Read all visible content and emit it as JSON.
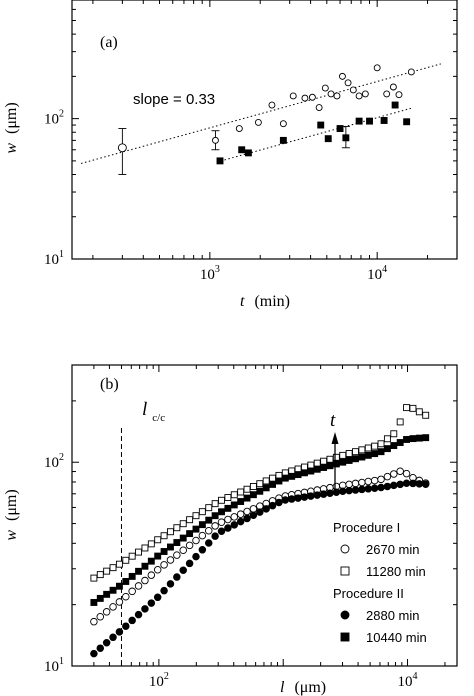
{
  "chart_data": [
    {
      "type": "scatter",
      "panel_label": "(a)",
      "xlabel": {
        "symbol": "t",
        "unit": "(min)"
      },
      "ylabel": {
        "symbol": "w",
        "unit": "(μm)"
      },
      "xscale": "log",
      "yscale": "log",
      "xlim": [
        150,
        30000
      ],
      "ylim": [
        10,
        700
      ],
      "xticks": [
        {
          "value": 1000,
          "base": "10",
          "exp": "3"
        },
        {
          "value": 10000,
          "base": "10",
          "exp": "4"
        }
      ],
      "yticks": [
        {
          "value": 10,
          "base": "10",
          "exp": "1"
        },
        {
          "value": 100,
          "base": "10",
          "exp": "2"
        }
      ],
      "annotation": "slope = 0.33",
      "series": [
        {
          "marker": "open-circle",
          "points": [
            {
              "x": 300,
              "y": 62,
              "err": [
                40,
                85
              ]
            },
            {
              "x": 1080,
              "y": 70,
              "err": [
                60,
                82
              ]
            },
            {
              "x": 1500,
              "y": 85
            },
            {
              "x": 1950,
              "y": 94
            },
            {
              "x": 2350,
              "y": 125
            },
            {
              "x": 2750,
              "y": 92
            },
            {
              "x": 3150,
              "y": 145
            },
            {
              "x": 3700,
              "y": 140
            },
            {
              "x": 4100,
              "y": 142
            },
            {
              "x": 4500,
              "y": 120
            },
            {
              "x": 4900,
              "y": 165
            },
            {
              "x": 5300,
              "y": 150
            },
            {
              "x": 5750,
              "y": 145
            },
            {
              "x": 6200,
              "y": 200
            },
            {
              "x": 6700,
              "y": 180
            },
            {
              "x": 7200,
              "y": 160
            },
            {
              "x": 7800,
              "y": 145
            },
            {
              "x": 8500,
              "y": 150
            },
            {
              "x": 10000,
              "y": 230
            },
            {
              "x": 11400,
              "y": 150
            },
            {
              "x": 12500,
              "y": 168
            },
            {
              "x": 13500,
              "y": 148
            },
            {
              "x": 16000,
              "y": 215
            }
          ]
        },
        {
          "marker": "filled-square",
          "points": [
            {
              "x": 1150,
              "y": 50
            },
            {
              "x": 1550,
              "y": 60
            },
            {
              "x": 1700,
              "y": 57
            },
            {
              "x": 2750,
              "y": 70
            },
            {
              "x": 4600,
              "y": 90
            },
            {
              "x": 5100,
              "y": 72
            },
            {
              "x": 6000,
              "y": 85
            },
            {
              "x": 6500,
              "y": 73,
              "err": [
                62,
                88
              ]
            },
            {
              "x": 7800,
              "y": 96
            },
            {
              "x": 9000,
              "y": 96
            },
            {
              "x": 11000,
              "y": 97
            },
            {
              "x": 12800,
              "y": 125
            },
            {
              "x": 15000,
              "y": 95
            }
          ]
        }
      ],
      "fit_lines": [
        {
          "slope": 0.33,
          "x": [
            170,
            24000
          ],
          "y_at_1000": 86
        },
        {
          "slope": 0.33,
          "x": [
            1100,
            16000
          ],
          "y_at_1000": 47.5
        }
      ]
    },
    {
      "type": "scatter",
      "panel_label": "(b)",
      "xlabel": {
        "symbol": "l",
        "unit": "(μm)"
      },
      "ylabel": {
        "symbol": "w",
        "unit": "(μm)"
      },
      "xscale": "log",
      "yscale": "log",
      "xlim": [
        20,
        25000
      ],
      "ylim": [
        10,
        300
      ],
      "xticks": [
        {
          "value": 100,
          "base": "10",
          "exp": "2"
        },
        {
          "value": 10000,
          "base": "10",
          "exp": "4"
        }
      ],
      "yticks": [
        {
          "value": 10,
          "base": "10",
          "exp": "1"
        },
        {
          "value": 100,
          "base": "10",
          "exp": "2"
        }
      ],
      "vline": {
        "x": 50,
        "label": "l",
        "label_sub": "c/c"
      },
      "arrow_label": "t",
      "legend": {
        "groups": [
          {
            "title": "Procedure I",
            "entries": [
              {
                "marker": "open-circle",
                "label": "2670 min"
              },
              {
                "marker": "open-square",
                "label": "11280 min"
              }
            ]
          },
          {
            "title": "Procedure II",
            "entries": [
              {
                "marker": "filled-circle",
                "label": "2880 min"
              },
              {
                "marker": "filled-square",
                "label": "10440 min"
              }
            ]
          }
        ]
      },
      "x_range": [
        30,
        14000
      ],
      "series": [
        {
          "name": "2670 min",
          "marker": "open-circle",
          "anchors": [
            [
              30,
              16.5
            ],
            [
              50,
              21
            ],
            [
              100,
              30
            ],
            [
              300,
              50
            ],
            [
              1000,
              68
            ],
            [
              3000,
              77
            ],
            [
              6000,
              82
            ],
            [
              9000,
              91
            ],
            [
              11000,
              84
            ],
            [
              14000,
              79
            ]
          ]
        },
        {
          "name": "11280 min",
          "marker": "open-square",
          "anchors": [
            [
              30,
              27
            ],
            [
              50,
              32
            ],
            [
              100,
              42
            ],
            [
              300,
              64
            ],
            [
              1000,
              88
            ],
            [
              3000,
              108
            ],
            [
              6000,
              122
            ],
            [
              8000,
              140
            ],
            [
              10000,
              190
            ],
            [
              14000,
              170
            ]
          ]
        },
        {
          "name": "2880 min",
          "marker": "filled-circle",
          "anchors": [
            [
              30,
              11.5
            ],
            [
              50,
              15
            ],
            [
              100,
              22
            ],
            [
              300,
              45
            ],
            [
              1000,
              65
            ],
            [
              3000,
              72
            ],
            [
              6000,
              75
            ],
            [
              10000,
              79
            ],
            [
              14000,
              78
            ]
          ]
        },
        {
          "name": "10440 min",
          "marker": "filled-square",
          "anchors": [
            [
              30,
              20.5
            ],
            [
              50,
              25
            ],
            [
              100,
              35
            ],
            [
              300,
              56
            ],
            [
              1000,
              83
            ],
            [
              3000,
              100
            ],
            [
              6000,
              112
            ],
            [
              10000,
              130
            ],
            [
              14000,
              132
            ]
          ]
        }
      ]
    }
  ]
}
